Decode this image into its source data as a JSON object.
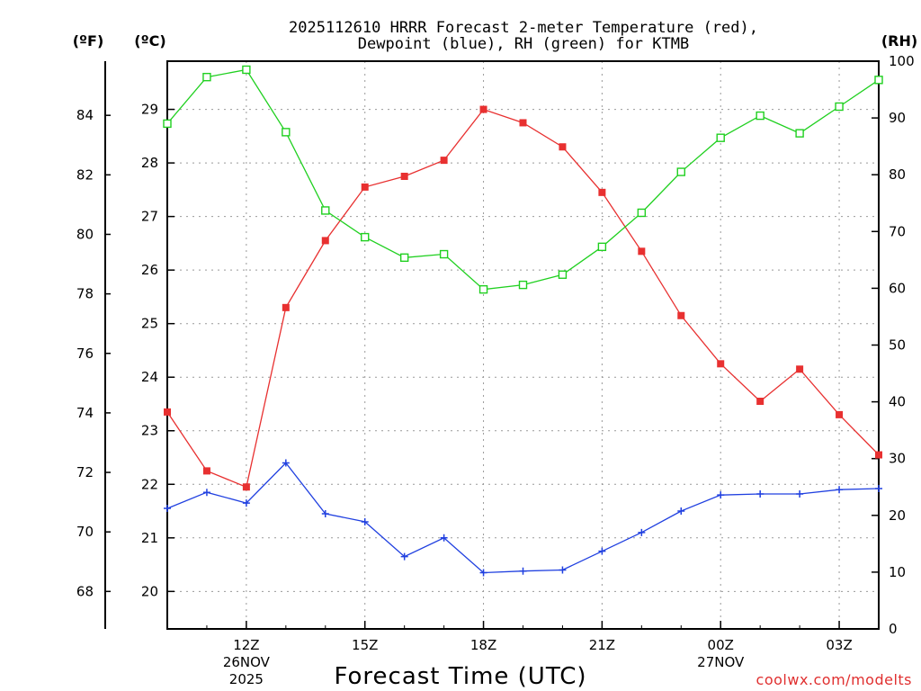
{
  "chart_data": {
    "type": "line",
    "title_line1": "2025112610 HRRR Forecast 2-meter Temperature (red),",
    "title_line2": "Dewpoint (blue), RH (green) for KTMB",
    "xlabel": "Forecast Time (UTC)",
    "credit": "coolwx.com/modelts",
    "units": {
      "fahrenheit": "(ºF)",
      "celsius": "(ºC)",
      "rh": "(RH)"
    },
    "x_hours_utc": [
      10,
      11,
      12,
      13,
      14,
      15,
      16,
      17,
      18,
      19,
      20,
      21,
      22,
      23,
      24,
      25,
      26,
      27,
      28
    ],
    "x_range_hours": [
      10,
      28
    ],
    "x_ticks": [
      {
        "hour": 12,
        "label": "12Z",
        "date": "26NOV",
        "year": "2025"
      },
      {
        "hour": 15,
        "label": "15Z"
      },
      {
        "hour": 18,
        "label": "18Z"
      },
      {
        "hour": 21,
        "label": "21Z"
      },
      {
        "hour": 24,
        "label": "00Z",
        "date": "27NOV"
      },
      {
        "hour": 27,
        "label": "03Z"
      }
    ],
    "celsius_axis": {
      "range": [
        19.3,
        29.9
      ],
      "ticks": [
        "20",
        "21",
        "22",
        "23",
        "24",
        "25",
        "26",
        "27",
        "28",
        "29"
      ]
    },
    "fahrenheit_axis": {
      "ticks": [
        "68",
        "70",
        "72",
        "74",
        "76",
        "78",
        "80",
        "82",
        "84"
      ]
    },
    "rh_axis": {
      "range": [
        0,
        100
      ],
      "ticks": [
        "0",
        "10",
        "20",
        "30",
        "40",
        "50",
        "60",
        "70",
        "80",
        "90",
        "100"
      ]
    },
    "series": [
      {
        "name": "2-meter Temperature",
        "unit": "C",
        "axis": "celsius",
        "color": "#e83030",
        "marker": "filled-square",
        "values": [
          23.35,
          22.25,
          21.95,
          25.3,
          26.55,
          27.55,
          27.75,
          28.05,
          29.0,
          28.75,
          28.3,
          27.45,
          26.35,
          25.15,
          24.25,
          23.55,
          24.15,
          23.3,
          22.55
        ]
      },
      {
        "name": "Dewpoint",
        "unit": "C",
        "axis": "celsius",
        "color": "#2040e0",
        "marker": "plus",
        "values": [
          21.55,
          21.85,
          21.65,
          22.4,
          21.45,
          21.3,
          20.65,
          21.0,
          20.35,
          20.38,
          20.4,
          20.75,
          21.1,
          21.5,
          21.8,
          21.82,
          21.82,
          21.9,
          21.92
        ]
      },
      {
        "name": "RH",
        "unit": "%",
        "axis": "rh",
        "color": "#20d020",
        "marker": "open-square",
        "values": [
          89.0,
          97.2,
          98.5,
          87.5,
          73.7,
          69.0,
          65.4,
          66.0,
          59.8,
          60.6,
          62.4,
          67.3,
          73.3,
          80.5,
          86.5,
          90.4,
          87.3,
          92.0,
          96.7
        ]
      }
    ]
  }
}
